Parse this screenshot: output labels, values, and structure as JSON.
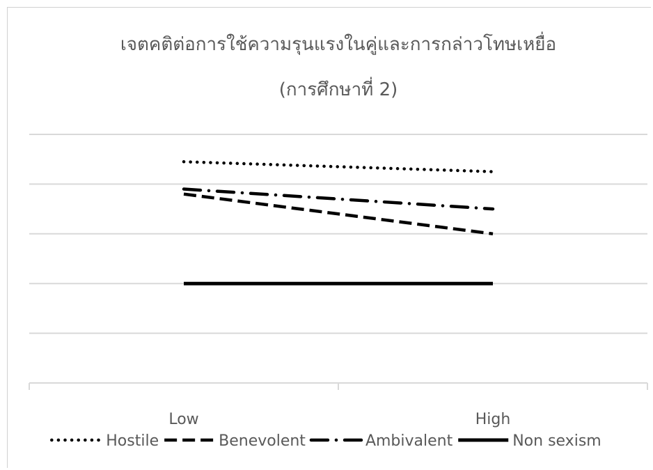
{
  "chart_data": {
    "type": "line",
    "title": "เจตคติต่อการใช้ความรุนแรงในคู่และการกล่าวโทษเหยื่อ",
    "subtitle": "(การศึกษาที่ 2)",
    "categories": [
      "Low",
      "High"
    ],
    "xlabel": "",
    "ylabel": "",
    "ylim": [
      0,
      5
    ],
    "grid": true,
    "legend_position": "bottom",
    "series": [
      {
        "name": "Hostile",
        "values": [
          4.45,
          4.25
        ],
        "color": "#000000",
        "dash": "dotted"
      },
      {
        "name": "Benevolent",
        "values": [
          3.8,
          3.0
        ],
        "color": "#000000",
        "dash": "dashed"
      },
      {
        "name": "Ambivalent",
        "values": [
          3.9,
          3.5
        ],
        "color": "#000000",
        "dash": "dash-dot"
      },
      {
        "name": "Non sexism",
        "values": [
          2.0,
          2.0
        ],
        "color": "#000000",
        "dash": "solid"
      }
    ]
  }
}
